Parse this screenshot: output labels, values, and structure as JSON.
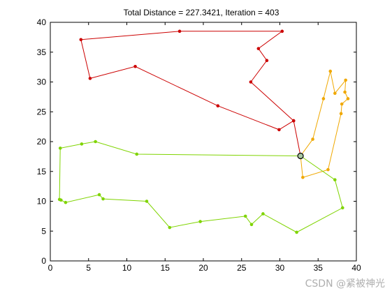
{
  "chart_data": {
    "type": "line",
    "title": "Total Distance = 227.3421, Iteration = 403",
    "xlim": [
      0,
      40
    ],
    "ylim": [
      0,
      40
    ],
    "xticks": [
      "0",
      "5",
      "10",
      "15",
      "20",
      "25",
      "30",
      "35",
      "40"
    ],
    "yticks": [
      "0",
      "5",
      "10",
      "15",
      "20",
      "25",
      "30",
      "35",
      "40"
    ],
    "grid": false,
    "depot": {
      "x": 32.7,
      "y": 17.6,
      "color": "#a8c8a0"
    },
    "series": [
      {
        "color": "#cc0000",
        "x": [
          32.7,
          31.8,
          29.9,
          21.9,
          11.1,
          5.2,
          4.0,
          16.9,
          30.3,
          27.2,
          28.3,
          26.2,
          31.8,
          32.7
        ],
        "y": [
          17.6,
          23.5,
          22.0,
          26.0,
          32.6,
          30.6,
          37.1,
          38.5,
          38.5,
          35.6,
          33.6,
          30.0,
          23.5,
          17.6
        ]
      },
      {
        "color": "#f0a800",
        "x": [
          32.7,
          33.0,
          36.3,
          38.0,
          38.1,
          38.9,
          38.5,
          38.6,
          37.2,
          36.6,
          35.7,
          34.3,
          32.7
        ],
        "y": [
          17.6,
          14.0,
          15.3,
          24.7,
          26.3,
          27.2,
          28.3,
          30.3,
          28.1,
          31.8,
          27.2,
          20.4,
          17.6
        ]
      },
      {
        "color": "#7fd400",
        "x": [
          32.7,
          37.2,
          38.2,
          32.2,
          27.8,
          26.3,
          25.5,
          19.6,
          15.6,
          12.6,
          6.9,
          6.4,
          2.0,
          1.4,
          1.2,
          1.3,
          4.1,
          5.9,
          11.3,
          32.7
        ],
        "y": [
          17.6,
          13.6,
          8.9,
          4.8,
          7.9,
          6.1,
          7.5,
          6.6,
          5.6,
          10.0,
          10.4,
          11.1,
          9.8,
          10.2,
          10.3,
          18.9,
          19.6,
          20.0,
          17.9,
          17.6
        ]
      }
    ]
  },
  "watermark": "CSDN @紧被神光"
}
